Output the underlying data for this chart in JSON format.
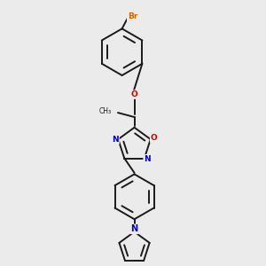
{
  "background_color": "#ebebeb",
  "figsize": [
    3.0,
    3.0
  ],
  "dpi": 100,
  "bond_color": "#1a1a1a",
  "bond_width": 1.4,
  "atom_colors": {
    "Br": "#cc6600",
    "O": "#cc0000",
    "N": "#0000cc",
    "C": "#1a1a1a"
  },
  "font_size_small": 6.5,
  "font_size_br": 6.5,
  "font_size_me": 5.5
}
